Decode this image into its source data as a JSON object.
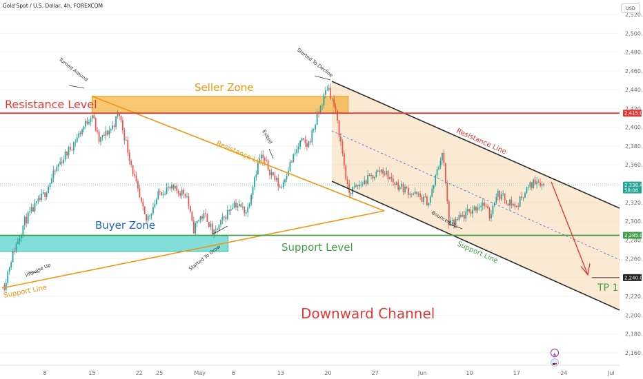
{
  "header": {
    "symbol_title": "Gold Spot / U.S. Dollar, 4h, FOREXCOM",
    "currency_button": "USD"
  },
  "colors": {
    "up": "#26a69a",
    "down": "#ef5350",
    "resistance": "#e53935",
    "support": "#43a047",
    "orange": "#f0960e",
    "channel": "#2b2b2b",
    "buyer_fill": "#4dd0c8",
    "seller_fill": "#f2a92a",
    "channel_fill": "#f5d9b0",
    "buyer_text": "#1e63c9",
    "price_tag": "#26a69a",
    "target_tag": "#222222"
  },
  "labels": {
    "resistance_level": "Resistance Level",
    "seller_zone": "Seller Zone",
    "buyer_zone": "Buyer Zone",
    "support_level": "Support Level",
    "downward_channel": "Downward Channel",
    "tp1": "TP 1",
    "resistance_line_orange": "Resistance Line",
    "resistance_line_channel": "Resistance Line",
    "support_line_orange": "Support Line",
    "support_line_channel": "Support Line",
    "turned_around": "Turned Around",
    "started_to_decline": "Started To Decline",
    "exited": "Exited",
    "impulse_up": "Impulse Up",
    "started_to_grow": "Started To Grow",
    "bounced_up": "Bounced Up"
  },
  "price_tags": {
    "resistance": "2,415.00",
    "current_price": "2,338.40",
    "current_sub": "58:06",
    "support": "2,285.00",
    "target": "2,240.00"
  },
  "chart_data": {
    "type": "candlestick",
    "title": "Gold Spot / U.S. Dollar, 4h, FOREXCOM",
    "ylim": [
      2150,
      2530
    ],
    "y_ticks": [
      "2,160.00",
      "2,180.00",
      "2,200.00",
      "2,220.00",
      "2,240.00",
      "2,260.00",
      "2,280.00",
      "2,300.00",
      "2,320.00",
      "2,340.00",
      "2,360.00",
      "2,380.00",
      "2,400.00",
      "2,420.00",
      "2,440.00",
      "2,460.00",
      "2,480.00",
      "2,500.00",
      "2,520.00"
    ],
    "x_ticks": [
      "8",
      "15",
      "22",
      "25",
      "May",
      "6",
      "13",
      "20",
      "27",
      "Jun",
      "10",
      "17",
      "24",
      "Jul"
    ],
    "price_path": [
      [
        "Apr 2",
        2232
      ],
      [
        "Apr 3",
        2260
      ],
      [
        "Apr 5",
        2300
      ],
      [
        "Apr 8",
        2330
      ],
      [
        "Apr 10",
        2360
      ],
      [
        "Apr 12",
        2380
      ],
      [
        "Apr 15",
        2415
      ],
      [
        "Apr 16",
        2385
      ],
      [
        "Apr 18",
        2400
      ],
      [
        "Apr 19",
        2415
      ],
      [
        "Apr 22",
        2325
      ],
      [
        "Apr 23",
        2300
      ],
      [
        "Apr 25",
        2330
      ],
      [
        "Apr 26",
        2335
      ],
      [
        "Apr 29",
        2330
      ],
      [
        "Apr 30",
        2290
      ],
      [
        "May 1",
        2305
      ],
      [
        "May 2",
        2305
      ],
      [
        "May 3",
        2285
      ],
      [
        "May 6",
        2320
      ],
      [
        "May 8",
        2310
      ],
      [
        "May 9",
        2345
      ],
      [
        "May 10",
        2370
      ],
      [
        "May 13",
        2335
      ],
      [
        "May 14",
        2355
      ],
      [
        "May 16",
        2385
      ],
      [
        "May 17",
        2380
      ],
      [
        "May 20",
        2445
      ],
      [
        "May 21",
        2420
      ],
      [
        "May 22",
        2380
      ],
      [
        "May 23",
        2330
      ],
      [
        "May 24",
        2335
      ],
      [
        "May 28",
        2355
      ],
      [
        "May 30",
        2340
      ],
      [
        "Jun 4",
        2320
      ],
      [
        "Jun 6",
        2375
      ],
      [
        "Jun 7",
        2295
      ],
      [
        "Jun 10",
        2310
      ],
      [
        "Jun 12",
        2320
      ],
      [
        "Jun 13",
        2305
      ],
      [
        "Jun 14",
        2330
      ],
      [
        "Jun 17",
        2315
      ],
      [
        "Jun 18",
        2330
      ],
      [
        "Jun 20",
        2345
      ],
      [
        "Jun 21",
        2338.4
      ]
    ],
    "levels": {
      "resistance_level": 2415,
      "support_level": 2285,
      "tp1": 2240,
      "current_price": 2338.4
    },
    "zones": {
      "seller_zone": [
        2415,
        2433
      ],
      "buyer_zone": [
        2268,
        2285
      ]
    },
    "legend": "none"
  }
}
